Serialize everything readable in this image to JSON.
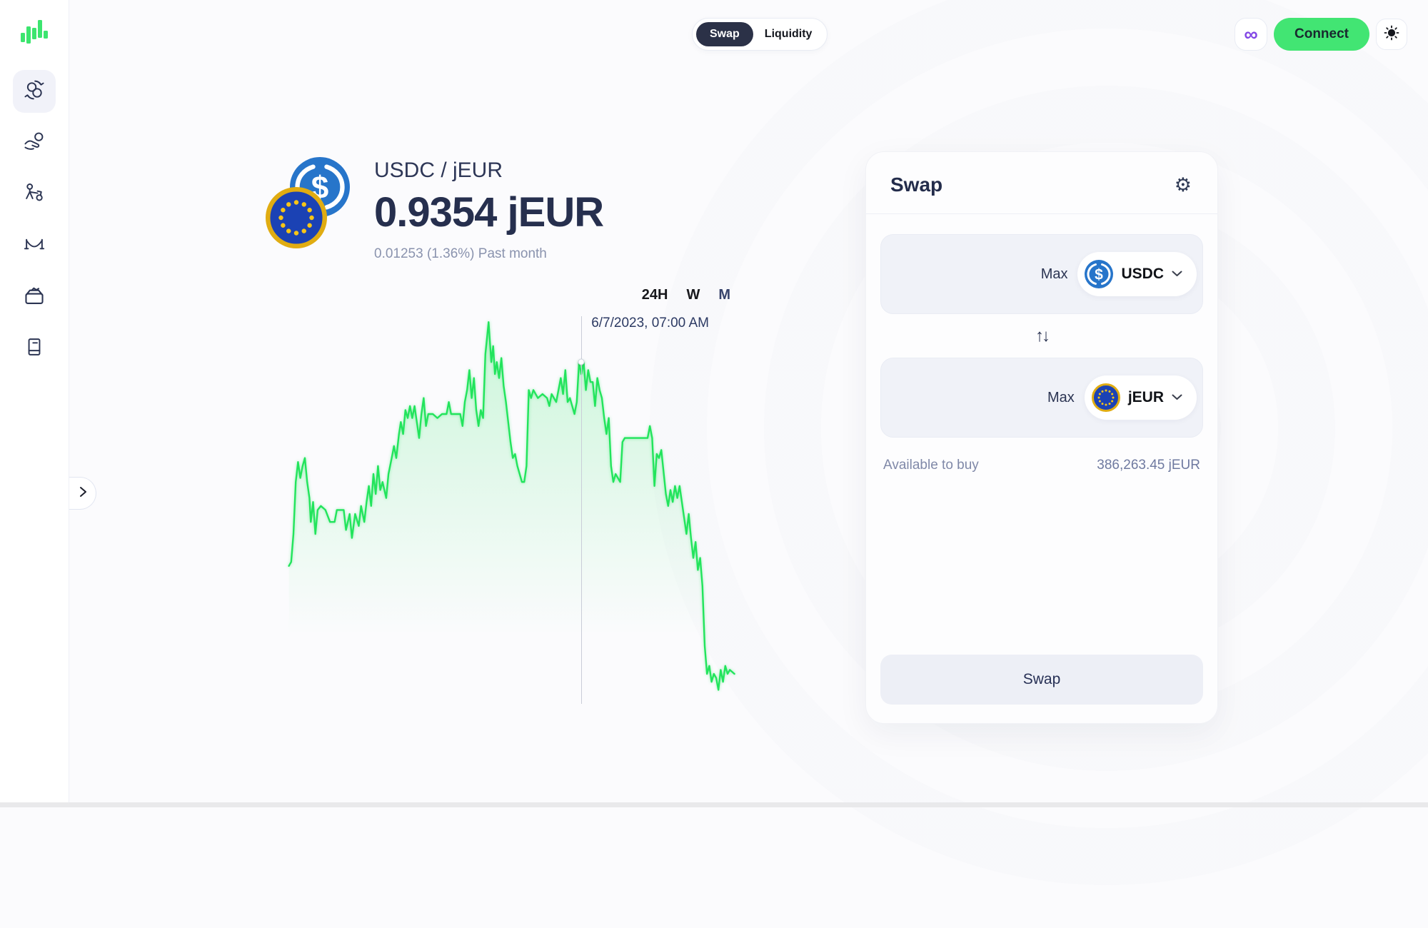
{
  "header": {
    "toggle": {
      "swap_label": "Swap",
      "liquidity_label": "Liquidity",
      "selected": "Swap"
    },
    "connect_label": "Connect",
    "network_icon": "polygon-network-icon",
    "network_glyph": "∞",
    "theme_icon": "sun-icon"
  },
  "sidebar": {
    "logo": "green-bars-logo",
    "items": [
      {
        "id": "swap",
        "icon": "exchange-icon",
        "active": true
      },
      {
        "id": "earn",
        "icon": "hand-coin-icon",
        "active": false
      },
      {
        "id": "faucet",
        "icon": "faucet-icon",
        "active": false
      },
      {
        "id": "bridge",
        "icon": "bridge-icon",
        "active": false
      },
      {
        "id": "market",
        "icon": "basket-icon",
        "active": false
      },
      {
        "id": "docs",
        "icon": "ledger-icon",
        "active": false
      }
    ],
    "expand_icon": "chevron-right-icon"
  },
  "pair": {
    "title": "USDC / jEUR",
    "price": "0.9354 jEUR",
    "change": "0.01253 (1.36%) Past month",
    "base_icon": "usdc-coin-icon",
    "quote_icon": "jeur-coin-icon"
  },
  "chart_data": {
    "type": "area",
    "title": "USDC / jEUR exchange rate, past month",
    "ylabel": "",
    "xlabel": "",
    "grid": false,
    "line_color": "#22e45c",
    "fill_top_color": "rgba(34,228,92,0.22)",
    "fill_bottom_color": "rgba(34,228,92,0)",
    "ranges": {
      "day": "24H",
      "week": "W",
      "month": "M"
    },
    "selected_range": "M",
    "crosshair": {
      "x_pct": 65.5,
      "y_pct": 12,
      "label": "6/7/2023, 07:00 AM"
    },
    "points": [
      [
        1.5,
        63
      ],
      [
        2,
        62
      ],
      [
        2.5,
        55
      ],
      [
        3,
        42
      ],
      [
        3.5,
        37
      ],
      [
        4,
        41
      ],
      [
        4.5,
        38
      ],
      [
        5,
        36
      ],
      [
        5.5,
        42
      ],
      [
        6,
        46
      ],
      [
        6.3,
        52
      ],
      [
        6.8,
        47
      ],
      [
        7.3,
        55
      ],
      [
        7.8,
        49
      ],
      [
        8.5,
        48
      ],
      [
        9.5,
        49
      ],
      [
        10.5,
        52
      ],
      [
        11.5,
        52
      ],
      [
        12,
        49
      ],
      [
        13.5,
        49
      ],
      [
        14,
        54
      ],
      [
        14.8,
        50
      ],
      [
        15.3,
        56
      ],
      [
        16,
        50
      ],
      [
        16.8,
        53
      ],
      [
        17.3,
        48
      ],
      [
        18,
        52
      ],
      [
        18.5,
        47
      ],
      [
        19,
        43
      ],
      [
        19.5,
        48
      ],
      [
        20,
        40
      ],
      [
        20.5,
        45
      ],
      [
        21,
        38
      ],
      [
        21.5,
        44
      ],
      [
        22,
        42
      ],
      [
        22.8,
        46
      ],
      [
        23.3,
        40
      ],
      [
        24,
        36
      ],
      [
        24.5,
        33
      ],
      [
        25,
        36
      ],
      [
        25.6,
        30
      ],
      [
        26,
        27
      ],
      [
        26.5,
        30
      ],
      [
        27,
        24
      ],
      [
        27.5,
        26
      ],
      [
        28,
        23
      ],
      [
        28.5,
        26
      ],
      [
        29,
        23
      ],
      [
        29.5,
        27
      ],
      [
        30,
        31
      ],
      [
        30.5,
        25
      ],
      [
        31,
        21
      ],
      [
        31.5,
        28
      ],
      [
        32,
        25
      ],
      [
        33,
        25
      ],
      [
        34,
        26
      ],
      [
        35,
        25
      ],
      [
        36,
        25
      ],
      [
        36.5,
        22
      ],
      [
        37,
        25
      ],
      [
        38,
        25
      ],
      [
        39,
        25
      ],
      [
        39.5,
        28
      ],
      [
        40,
        22
      ],
      [
        40.5,
        19
      ],
      [
        41,
        14
      ],
      [
        41.5,
        21
      ],
      [
        42,
        16
      ],
      [
        42.5,
        24
      ],
      [
        43,
        28
      ],
      [
        43.5,
        24
      ],
      [
        44,
        26
      ],
      [
        44.5,
        10
      ],
      [
        45.2,
        2
      ],
      [
        45.8,
        12
      ],
      [
        46.2,
        8
      ],
      [
        46.6,
        15
      ],
      [
        47,
        12
      ],
      [
        47.5,
        16
      ],
      [
        48,
        11
      ],
      [
        48.5,
        18
      ],
      [
        49,
        22
      ],
      [
        49.5,
        27
      ],
      [
        50,
        32
      ],
      [
        50.5,
        36
      ],
      [
        51,
        35
      ],
      [
        51.5,
        38
      ],
      [
        52,
        40
      ],
      [
        52.5,
        42
      ],
      [
        53,
        42
      ],
      [
        53.5,
        38
      ],
      [
        54,
        19
      ],
      [
        54.5,
        21
      ],
      [
        55,
        19
      ],
      [
        56,
        21
      ],
      [
        57,
        20
      ],
      [
        58,
        21
      ],
      [
        58.5,
        23
      ],
      [
        59,
        20
      ],
      [
        60,
        22
      ],
      [
        60.5,
        19
      ],
      [
        61,
        16
      ],
      [
        61.5,
        20
      ],
      [
        62,
        14
      ],
      [
        62.5,
        22
      ],
      [
        63,
        21
      ],
      [
        63.5,
        23
      ],
      [
        64,
        25
      ],
      [
        64.5,
        22
      ],
      [
        65,
        12
      ],
      [
        65.5,
        15
      ],
      [
        66,
        12
      ],
      [
        66.5,
        19
      ],
      [
        67,
        14
      ],
      [
        67.5,
        17
      ],
      [
        68,
        17
      ],
      [
        68.5,
        23
      ],
      [
        69,
        16
      ],
      [
        69.5,
        19
      ],
      [
        70,
        21
      ],
      [
        70.5,
        26
      ],
      [
        71,
        30
      ],
      [
        71.5,
        26
      ],
      [
        72,
        38
      ],
      [
        72.5,
        42
      ],
      [
        73,
        40
      ],
      [
        74,
        42
      ],
      [
        74.5,
        32
      ],
      [
        75,
        31
      ],
      [
        76,
        31
      ],
      [
        77,
        31
      ],
      [
        78,
        31
      ],
      [
        79,
        31
      ],
      [
        80,
        31
      ],
      [
        80.5,
        28
      ],
      [
        81,
        31
      ],
      [
        81.5,
        43
      ],
      [
        82,
        35
      ],
      [
        82.5,
        36
      ],
      [
        83,
        34
      ],
      [
        84,
        45
      ],
      [
        84.5,
        48
      ],
      [
        85,
        44
      ],
      [
        85.5,
        47
      ],
      [
        86,
        43
      ],
      [
        86.5,
        46
      ],
      [
        87,
        43
      ],
      [
        87.5,
        47
      ],
      [
        88,
        51
      ],
      [
        88.5,
        55
      ],
      [
        89,
        50
      ],
      [
        89.5,
        56
      ],
      [
        90,
        61
      ],
      [
        90.5,
        57
      ],
      [
        91,
        64
      ],
      [
        91.5,
        61
      ],
      [
        92,
        68
      ],
      [
        92.5,
        83
      ],
      [
        93,
        90
      ],
      [
        93.5,
        88
      ],
      [
        94,
        92
      ],
      [
        94.5,
        90
      ],
      [
        95,
        91
      ],
      [
        95.5,
        94
      ],
      [
        96,
        89
      ],
      [
        96.5,
        92
      ],
      [
        97,
        88
      ],
      [
        97.5,
        90
      ],
      [
        98,
        89
      ],
      [
        99,
        90
      ]
    ]
  },
  "swap_card": {
    "title": "Swap",
    "settings_icon": "gear-icon",
    "settings_glyph": "⚙",
    "from": {
      "max_label": "Max",
      "token": "USDC",
      "token_icon": "usdc-coin-icon",
      "value": ""
    },
    "direction_icon": "swap-vertical-icon",
    "direction_glyph": "↑↓",
    "to": {
      "max_label": "Max",
      "token": "jEUR",
      "token_icon": "jeur-coin-icon",
      "value": ""
    },
    "available": {
      "label": "Available to buy",
      "value": "386,263.45 jEUR"
    },
    "submit_label": "Swap"
  }
}
